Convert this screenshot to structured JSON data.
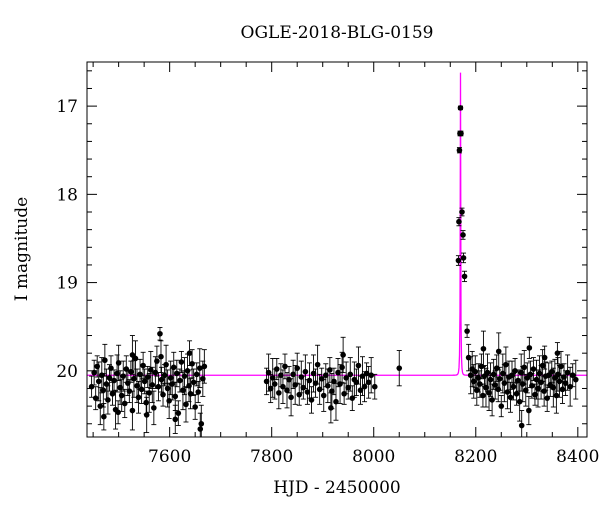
{
  "chart_data": {
    "type": "scatter",
    "title": "OGLE-2018-BLG-0159",
    "xlabel": "HJD - 2450000",
    "ylabel": "I magnitude",
    "xlim": [
      7438,
      8418
    ],
    "ylim": [
      20.75,
      16.5
    ],
    "y_inverted": true,
    "x_ticks": [
      7600,
      7800,
      8000,
      8200,
      8400
    ],
    "y_ticks": [
      17,
      18,
      19,
      20
    ],
    "point_color": "#000000",
    "model_color": "#ff00ff",
    "model": {
      "type": "microlensing",
      "t0": 8170,
      "u0": 0.02,
      "tE": 1.6,
      "baseline_mag": 20.05
    },
    "series": [
      {
        "values": [
          [
            7447,
            20.18
          ],
          [
            7452,
            20.02
          ],
          [
            7455,
            20.31
          ],
          [
            7458,
            19.95
          ],
          [
            7461,
            20.12
          ],
          [
            7464,
            20.4
          ],
          [
            7467,
            20.05
          ],
          [
            7470,
            20.22
          ],
          [
            7473,
            19.88
          ],
          [
            7476,
            20.15
          ],
          [
            7479,
            20.33
          ],
          [
            7482,
            20.08
          ],
          [
            7485,
            19.97
          ],
          [
            7488,
            20.26
          ],
          [
            7491,
            20.11
          ],
          [
            7494,
            20.44
          ],
          [
            7497,
            20.03
          ],
          [
            7500,
            19.91
          ],
          [
            7503,
            20.19
          ],
          [
            7506,
            20.28
          ],
          [
            7509,
            20.06
          ],
          [
            7512,
            20.37
          ],
          [
            7515,
            19.98
          ],
          [
            7518,
            20.14
          ],
          [
            7521,
            20.23
          ],
          [
            7524,
            20.01
          ],
          [
            7527,
            20.45
          ],
          [
            7530,
            20.09
          ],
          [
            7533,
            19.86
          ],
          [
            7536,
            20.17
          ],
          [
            7539,
            20.3
          ],
          [
            7542,
            20.04
          ],
          [
            7545,
            20.21
          ],
          [
            7548,
            19.94
          ],
          [
            7551,
            20.12
          ],
          [
            7554,
            20.36
          ],
          [
            7557,
            20.07
          ],
          [
            7560,
            20.25
          ],
          [
            7563,
            19.99
          ],
          [
            7566,
            20.16
          ],
          [
            7569,
            20.42
          ],
          [
            7572,
            20.02
          ],
          [
            7575,
            19.89
          ],
          [
            7578,
            20.18
          ],
          [
            7581,
            19.58
          ],
          [
            7584,
            20.1
          ],
          [
            7587,
            20.27
          ],
          [
            7590,
            20.05
          ],
          [
            7593,
            19.93
          ],
          [
            7596,
            20.2
          ],
          [
            7599,
            20.34
          ],
          [
            7602,
            20.08
          ],
          [
            7605,
            20.15
          ],
          [
            7608,
            19.96
          ],
          [
            7611,
            20.29
          ],
          [
            7614,
            20.03
          ],
          [
            7617,
            20.48
          ],
          [
            7620,
            20.11
          ],
          [
            7623,
            19.9
          ],
          [
            7626,
            20.22
          ],
          [
            7629,
            20.06
          ],
          [
            7632,
            20.38
          ],
          [
            7635,
            20.0
          ],
          [
            7638,
            20.17
          ],
          [
            7641,
            20.26
          ],
          [
            7644,
            19.92
          ],
          [
            7647,
            20.13
          ],
          [
            7650,
            20.41
          ],
          [
            7653,
            20.04
          ],
          [
            7656,
            20.24
          ],
          [
            7659,
            19.97
          ],
          [
            7662,
            20.6
          ],
          [
            7665,
            20.09
          ],
          [
            7668,
            19.95
          ],
          [
            7471,
            20.52
          ],
          [
            7499,
            20.47
          ],
          [
            7527,
            19.82
          ],
          [
            7555,
            20.5
          ],
          [
            7583,
            19.84
          ],
          [
            7611,
            20.55
          ],
          [
            7639,
            19.8
          ],
          [
            7660,
            20.66
          ],
          [
            7790,
            20.12
          ],
          [
            7794,
            20.02
          ],
          [
            7798,
            20.2
          ],
          [
            7802,
            20.08
          ],
          [
            7806,
            20.15
          ],
          [
            7810,
            19.98
          ],
          [
            7814,
            20.25
          ],
          [
            7818,
            20.05
          ],
          [
            7822,
            20.18
          ],
          [
            7826,
            19.95
          ],
          [
            7830,
            20.22
          ],
          [
            7834,
            20.1
          ],
          [
            7838,
            20.3
          ],
          [
            7842,
            20.04
          ],
          [
            7846,
            20.16
          ],
          [
            7850,
            19.97
          ],
          [
            7854,
            20.27
          ],
          [
            7858,
            20.07
          ],
          [
            7862,
            20.19
          ],
          [
            7866,
            20.01
          ],
          [
            7870,
            20.24
          ],
          [
            7874,
            20.11
          ],
          [
            7878,
            20.33
          ],
          [
            7882,
            20.03
          ],
          [
            7886,
            20.14
          ],
          [
            7890,
            19.93
          ],
          [
            7894,
            20.21
          ],
          [
            7898,
            20.09
          ],
          [
            7902,
            20.28
          ],
          [
            7906,
            20.05
          ],
          [
            7910,
            20.17
          ],
          [
            7914,
            19.99
          ],
          [
            7918,
            20.23
          ],
          [
            7922,
            20.12
          ],
          [
            7926,
            20.35
          ],
          [
            7930,
            20.02
          ],
          [
            7934,
            20.15
          ],
          [
            7938,
            19.96
          ],
          [
            7942,
            20.26
          ],
          [
            7946,
            20.08
          ],
          [
            7950,
            20.19
          ],
          [
            7954,
            20.04
          ],
          [
            7958,
            20.31
          ],
          [
            7962,
            20.1
          ],
          [
            7966,
            20.13
          ],
          [
            7970,
            19.94
          ],
          [
            7974,
            20.22
          ],
          [
            7978,
            20.06
          ],
          [
            7982,
            20.18
          ],
          [
            7986,
            20.03
          ],
          [
            7990,
            20.13
          ],
          [
            7995,
            20.05
          ],
          [
            8002,
            20.18
          ],
          [
            8050,
            19.97
          ],
          [
            7940,
            19.82
          ],
          [
            7916,
            20.42
          ],
          [
            8166,
            18.75
          ],
          [
            8167,
            18.31
          ],
          [
            8168,
            17.5
          ],
          [
            8169,
            17.31
          ],
          [
            8170,
            17.02
          ],
          [
            8171,
            17.31
          ],
          [
            8173,
            18.2
          ],
          [
            8175,
            18.46
          ],
          [
            8176,
            18.72
          ],
          [
            8178,
            18.93
          ],
          [
            8183,
            19.55
          ],
          [
            8186,
            19.85
          ],
          [
            8190,
            20.05
          ],
          [
            8193,
            19.98
          ],
          [
            8196,
            20.12
          ],
          [
            8199,
            20.01
          ],
          [
            8202,
            20.22
          ],
          [
            8205,
            20.08
          ],
          [
            8208,
            20.15
          ],
          [
            8211,
            19.95
          ],
          [
            8214,
            20.28
          ],
          [
            8217,
            20.06
          ],
          [
            8220,
            20.19
          ],
          [
            8223,
            20.02
          ],
          [
            8226,
            20.25
          ],
          [
            8229,
            20.1
          ],
          [
            8232,
            20.33
          ],
          [
            8235,
            20.04
          ],
          [
            8238,
            20.16
          ],
          [
            8241,
            19.97
          ],
          [
            8244,
            20.21
          ],
          [
            8247,
            20.09
          ],
          [
            8250,
            20.4
          ],
          [
            8253,
            20.03
          ],
          [
            8256,
            20.14
          ],
          [
            8259,
            19.93
          ],
          [
            8262,
            20.24
          ],
          [
            8265,
            20.07
          ],
          [
            8268,
            20.3
          ],
          [
            8271,
            20.05
          ],
          [
            8274,
            20.18
          ],
          [
            8277,
            20.0
          ],
          [
            8280,
            20.26
          ],
          [
            8283,
            20.11
          ],
          [
            8286,
            20.35
          ],
          [
            8289,
            20.02
          ],
          [
            8292,
            20.15
          ],
          [
            8295,
            19.96
          ],
          [
            8298,
            20.22
          ],
          [
            8301,
            20.08
          ],
          [
            8304,
            20.45
          ],
          [
            8307,
            20.04
          ],
          [
            8310,
            20.17
          ],
          [
            8313,
            19.98
          ],
          [
            8316,
            20.27
          ],
          [
            8319,
            20.1
          ],
          [
            8322,
            20.2
          ],
          [
            8325,
            20.03
          ],
          [
            8328,
            20.13
          ],
          [
            8331,
            19.94
          ],
          [
            8334,
            20.23
          ],
          [
            8337,
            20.06
          ],
          [
            8340,
            20.31
          ],
          [
            8343,
            20.05
          ],
          [
            8346,
            20.16
          ],
          [
            8349,
            20.01
          ],
          [
            8352,
            20.19
          ],
          [
            8355,
            20.08
          ],
          [
            8358,
            20.28
          ],
          [
            8361,
            20.04
          ],
          [
            8364,
            20.12
          ],
          [
            8367,
            19.95
          ],
          [
            8370,
            20.21
          ],
          [
            8373,
            20.07
          ],
          [
            8376,
            20.14
          ],
          [
            8380,
            20.02
          ],
          [
            8385,
            20.18
          ],
          [
            8390,
            20.05
          ],
          [
            8396,
            20.1
          ],
          [
            8215,
            19.75
          ],
          [
            8245,
            19.78
          ],
          [
            8290,
            20.62
          ],
          [
            8305,
            19.74
          ],
          [
            8335,
            19.85
          ],
          [
            8360,
            19.8
          ]
        ]
      }
    ]
  }
}
